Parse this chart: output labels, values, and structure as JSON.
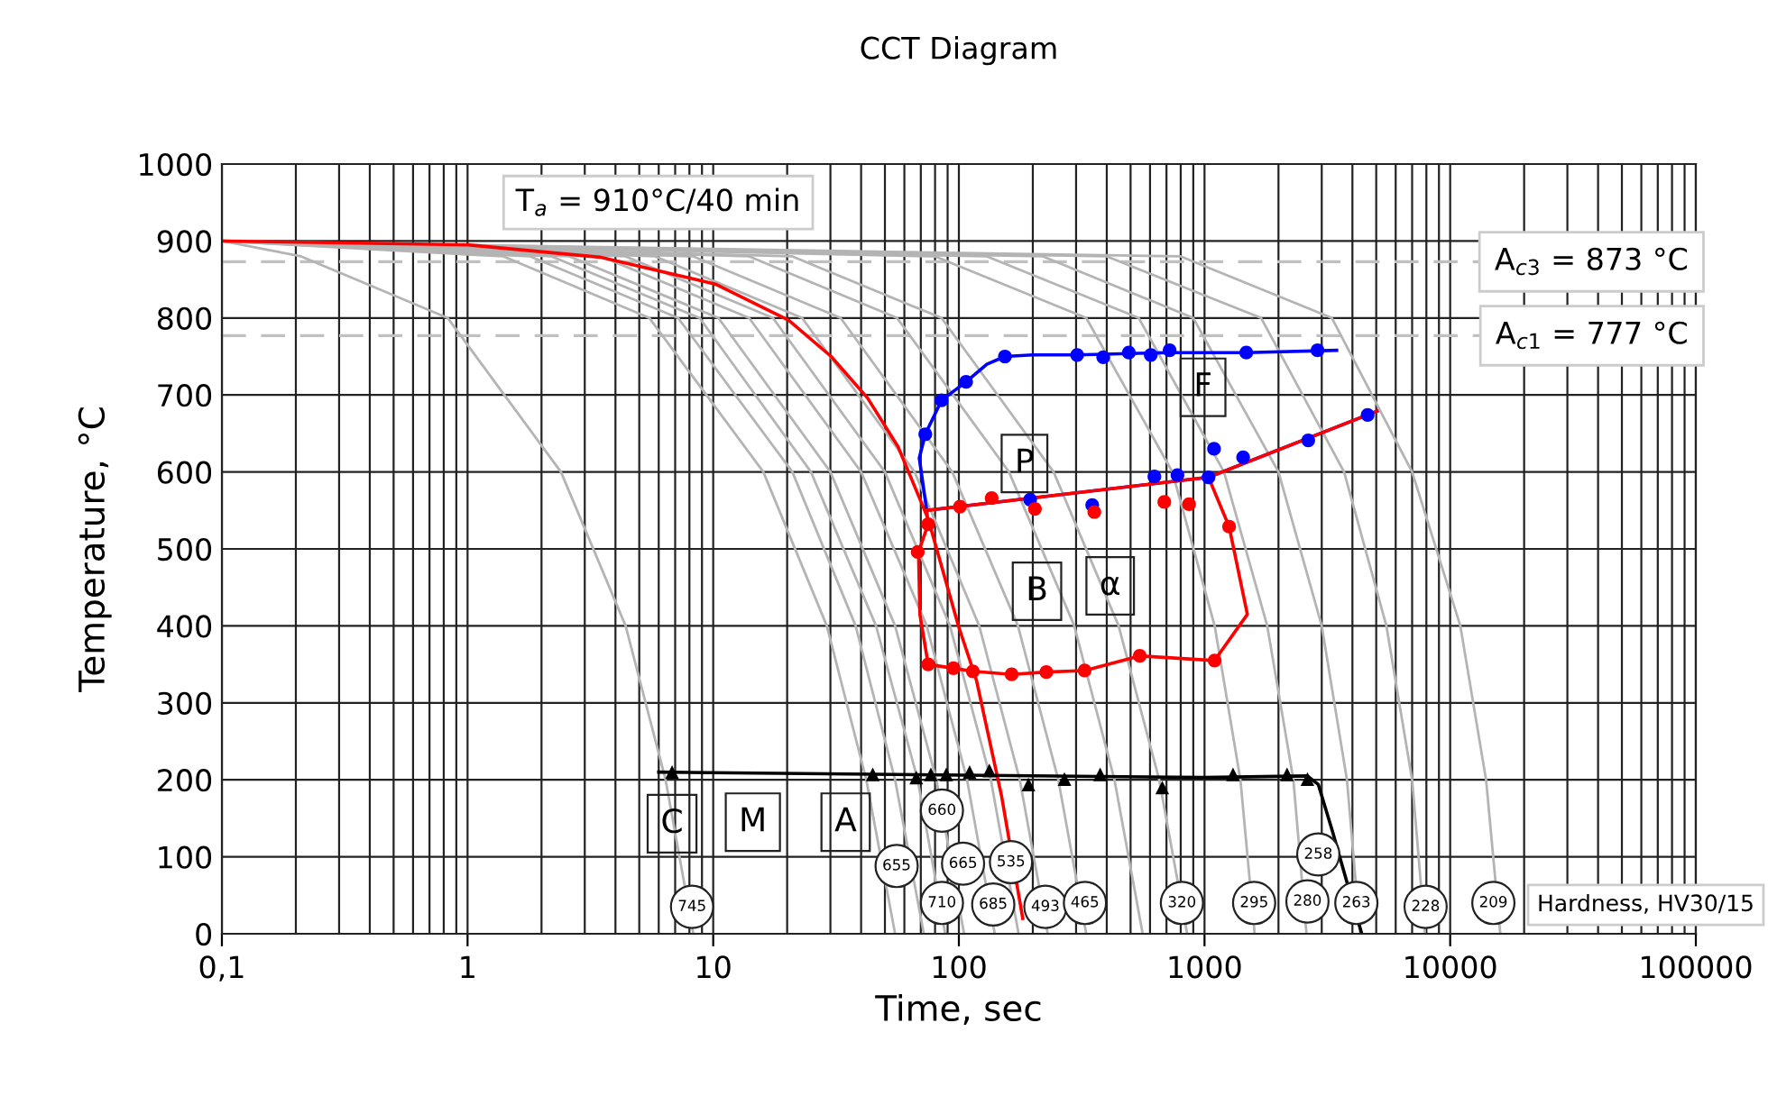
{
  "chart_data": {
    "type": "line",
    "title": "CCT Diagram",
    "xlabel": "Time, sec",
    "ylabel": "Temperature, °C",
    "log": "x",
    "grid": true,
    "xlim": [
      0.1,
      100000
    ],
    "ylim": [
      0,
      1000
    ],
    "xticks": [
      {
        "value": 0.1,
        "label": "0,1"
      },
      1,
      10,
      100,
      1000,
      10000,
      100000
    ],
    "yticks": [
      0,
      100,
      200,
      300,
      400,
      500,
      600,
      700,
      800,
      900,
      1000
    ],
    "ref_lines": [
      {
        "axis": "y",
        "value": 873,
        "label": "A$_{c3}$ = 873 °C",
        "color": "#c0c0c0",
        "line_style": "dashed"
      },
      {
        "axis": "y",
        "value": 777,
        "label": "A$_{c1}$ = 777 °C",
        "color": "#c0c0c0",
        "line_style": "dashed"
      }
    ],
    "series": [
      {
        "type": "line",
        "color": "#b4b4b4",
        "x": [
          0.1,
          0.21,
          0.83,
          2.4,
          4.4,
          6.4,
          8.3
        ],
        "values": [
          900,
          880,
          800,
          600,
          400,
          200,
          0
        ]
      },
      {
        "type": "line",
        "color": "#b4b4b4",
        "x": [
          0.1,
          1.4,
          5.5,
          16,
          29,
          42,
          55
        ],
        "values": [
          900,
          880,
          800,
          600,
          400,
          200,
          0
        ]
      },
      {
        "type": "line",
        "color": "#b4b4b4",
        "x": [
          0.1,
          1.8,
          7.2,
          21,
          38,
          55,
          72
        ],
        "values": [
          900,
          880,
          800,
          600,
          400,
          200,
          0
        ]
      },
      {
        "type": "line",
        "color": "#b4b4b4",
        "x": [
          0.1,
          2.2,
          8.8,
          25,
          46,
          68,
          88
        ],
        "values": [
          900,
          880,
          800,
          600,
          400,
          200,
          0
        ]
      },
      {
        "type": "line",
        "color": "#b4b4b4",
        "x": [
          0.1,
          2.6,
          10.5,
          30,
          55,
          81,
          105
        ],
        "values": [
          900,
          880,
          800,
          600,
          400,
          200,
          0
        ]
      },
      {
        "type": "line",
        "color": "#b4b4b4",
        "x": [
          0.1,
          3.5,
          14,
          40,
          74,
          108,
          140
        ],
        "values": [
          900,
          880,
          800,
          600,
          400,
          200,
          0
        ]
      },
      {
        "type": "line",
        "color": "#b4b4b4",
        "x": [
          0.1,
          4.4,
          17.5,
          50,
          92,
          135,
          175
        ],
        "values": [
          900,
          880,
          800,
          600,
          400,
          200,
          0
        ]
      },
      {
        "type": "line",
        "color": "#b4b4b4",
        "x": [
          0.1,
          5.8,
          23,
          66,
          121,
          177,
          230
        ],
        "values": [
          900,
          880,
          800,
          600,
          400,
          200,
          0
        ]
      },
      {
        "type": "line",
        "color": "#b4b4b4",
        "x": [
          0.1,
          8.3,
          33,
          94,
          174,
          254,
          330
        ],
        "values": [
          900,
          880,
          800,
          600,
          400,
          200,
          0
        ]
      },
      {
        "type": "line",
        "color": "#b4b4b4",
        "x": [
          0.1,
          14,
          56,
          160,
          295,
          430,
          560
        ],
        "values": [
          900,
          880,
          800,
          600,
          400,
          200,
          0
        ]
      },
      {
        "type": "line",
        "color": "#b4b4b4",
        "x": [
          0.1,
          21,
          85,
          243,
          447,
          654,
          850
        ],
        "values": [
          900,
          880,
          800,
          600,
          400,
          200,
          0
        ]
      },
      {
        "type": "line",
        "color": "#b4b4b4",
        "x": [
          0.1,
          80,
          330,
          740,
          1100,
          1400,
          1600
        ],
        "values": [
          900,
          880,
          800,
          600,
          400,
          200,
          0
        ]
      },
      {
        "type": "line",
        "color": "#b4b4b4",
        "x": [
          0.1,
          130,
          540,
          1200,
          1800,
          2300,
          2600
        ],
        "values": [
          900,
          880,
          800,
          600,
          400,
          200,
          0
        ]
      },
      {
        "type": "line",
        "color": "#b4b4b4",
        "x": [
          0.1,
          220,
          900,
          2000,
          3000,
          3800,
          4300
        ],
        "values": [
          900,
          880,
          800,
          600,
          400,
          200,
          0
        ]
      },
      {
        "type": "line",
        "color": "#b4b4b4",
        "x": [
          0.1,
          400,
          1700,
          3700,
          5500,
          7000,
          7900
        ],
        "values": [
          900,
          880,
          800,
          600,
          400,
          200,
          0
        ]
      },
      {
        "type": "line",
        "color": "#b4b4b4",
        "x": [
          0.1,
          800,
          3300,
          7000,
          11000,
          14000,
          16000
        ],
        "values": [
          900,
          880,
          800,
          600,
          400,
          200,
          0
        ]
      },
      {
        "type": "line",
        "color": "#ff0000",
        "x": [
          0.1,
          1,
          3.46,
          10.2,
          20.3,
          30.2,
          42.5,
          56.5,
          75,
          99.8,
          118,
          149,
          182
        ],
        "values": [
          900,
          895,
          879,
          844,
          797,
          750,
          696,
          633,
          539,
          399,
          329,
          180,
          20
        ]
      },
      {
        "type": "line",
        "color": "#0000ff",
        "x": [
          5035,
          1038,
          74,
          69,
          73,
          85,
          107,
          130,
          154,
          200,
          303,
          700,
          1479,
          3451
        ],
        "values": [
          679,
          593,
          550,
          618,
          649,
          693,
          717,
          740,
          750,
          752,
          752,
          755,
          755,
          758
        ]
      },
      {
        "type": "line",
        "color": "#ff0000",
        "x": [
          74,
          1038,
          5035
        ],
        "values": [
          550,
          593,
          679
        ]
      },
      {
        "type": "line",
        "color": "#ff0000",
        "x": [
          74,
          75,
          68.5,
          69.4,
          75,
          94.8,
          113.8,
          164,
          227,
          325,
          545,
          1099,
          1494,
          1259,
          1038
        ],
        "values": [
          550,
          532,
          496,
          415,
          350,
          345,
          341,
          337,
          340,
          342,
          361,
          355,
          415,
          529,
          593
        ]
      },
      {
        "type": "scatter",
        "color": "#0000ff",
        "marker": "circle",
        "x": [
          73,
          85,
          107,
          154,
          303,
          387,
          492,
          604,
          721,
          1479,
          2884,
          195,
          349,
          625,
          776,
          1038,
          1093,
          1436,
          2644,
          4613
        ],
        "values": [
          649,
          693,
          717,
          750,
          752,
          749,
          755,
          752,
          758,
          755,
          758,
          564,
          557,
          594,
          596,
          593,
          630,
          619,
          641,
          674
        ]
      },
      {
        "type": "scatter",
        "color": "#ff0000",
        "marker": "circle",
        "x": [
          101,
          136,
          204,
          356,
          686,
          865,
          1259,
          75,
          68,
          75,
          95,
          114,
          164,
          227,
          325,
          545,
          1099
        ],
        "values": [
          555,
          566,
          552,
          548,
          561,
          558,
          529,
          532,
          496,
          350,
          345,
          341,
          337,
          340,
          342,
          361,
          355
        ]
      },
      {
        "color": "#000000",
        "x": [
          6,
          1000,
          2624,
          2904,
          3319,
          3700,
          4365
        ],
        "values": [
          210,
          203,
          205,
          194,
          133,
          80,
          0
        ]
      },
      {
        "type": "scatter",
        "color": "#000000",
        "marker": "triangle",
        "x": [
          6.8,
          44.6,
          67.1,
          76.9,
          88.9,
          110.6,
          133,
          192,
          269,
          376,
          673,
          1306,
          2167,
          2624
        ],
        "values": [
          210,
          207,
          203,
          207,
          207,
          210,
          212,
          194,
          201,
          207,
          190,
          207,
          207,
          201
        ]
      }
    ],
    "annotations": [
      "T$_{a}$ = 910°C/40 min",
      "Hardness, HV30/15",
      {
        "text": "C",
        "x": 6.8,
        "y": 143
      },
      {
        "text": "M",
        "x": 14.5,
        "y": 145
      },
      {
        "text": "A",
        "x": 34.6,
        "y": 145
      },
      {
        "text": "P",
        "x": 185,
        "y": 611
      },
      {
        "text": "B",
        "x": 208,
        "y": 445
      },
      {
        "text": "α",
        "x": 413,
        "y": 452
      },
      {
        "text": "F",
        "x": 986,
        "y": 710
      },
      {
        "text": "745",
        "x": 8.2,
        "y": 35
      },
      {
        "text": "655",
        "x": 55.8,
        "y": 88
      },
      {
        "text": "660",
        "x": 85.3,
        "y": 160
      },
      {
        "text": "710",
        "x": 85.3,
        "y": 40
      },
      {
        "text": "665",
        "x": 104,
        "y": 91
      },
      {
        "text": "685",
        "x": 138,
        "y": 38
      },
      {
        "text": "535",
        "x": 163,
        "y": 93
      },
      {
        "text": "493",
        "x": 225,
        "y": 35
      },
      {
        "text": "465",
        "x": 326,
        "y": 40
      },
      {
        "text": "320",
        "x": 809,
        "y": 40
      },
      {
        "text": "295",
        "x": 1592,
        "y": 40
      },
      {
        "text": "280",
        "x": 2624,
        "y": 42
      },
      {
        "text": "258",
        "x": 2904,
        "y": 103
      },
      {
        "text": "263",
        "x": 4150,
        "y": 40
      },
      {
        "text": "228",
        "x": 7943,
        "y": 35
      },
      {
        "text": "209",
        "x": 14990,
        "y": 40
      }
    ]
  }
}
